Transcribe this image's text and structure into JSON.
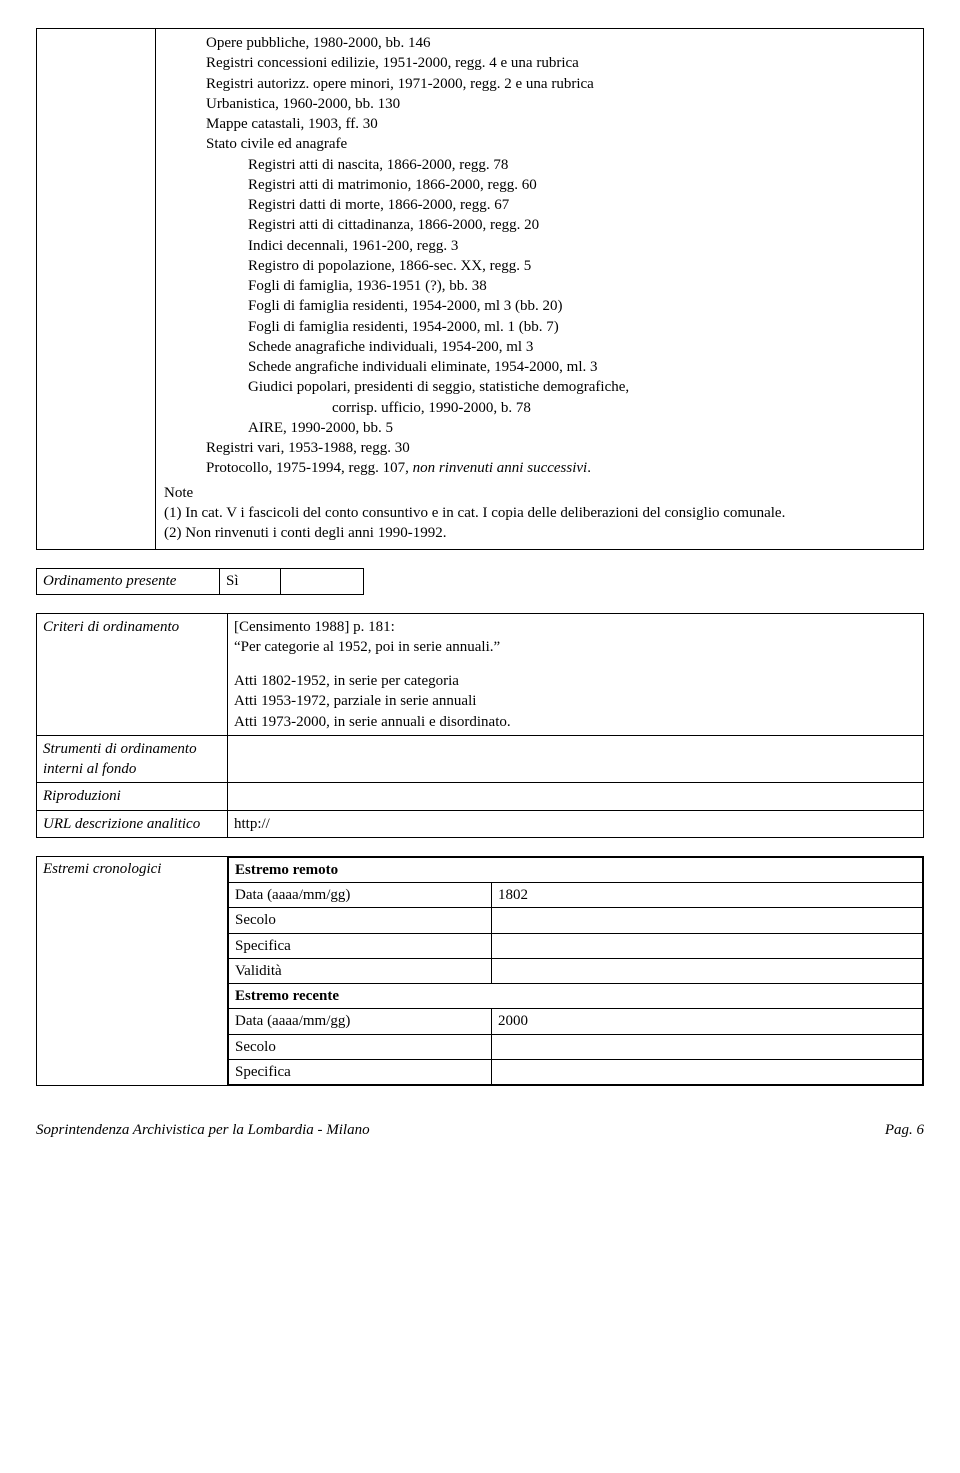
{
  "main": {
    "lines": [
      {
        "cls": "indent1",
        "text": "Opere pubbliche, 1980-2000, bb. 146"
      },
      {
        "cls": "indent1",
        "text": "Registri concessioni edilizie, 1951-2000, regg. 4 e una rubrica"
      },
      {
        "cls": "indent1",
        "text": "Registri autorizz. opere minori, 1971-2000, regg. 2 e una rubrica"
      },
      {
        "cls": "indent1",
        "text": "Urbanistica, 1960-2000, bb. 130"
      },
      {
        "cls": "indent1",
        "text": "Mappe catastali, 1903, ff. 30"
      },
      {
        "cls": "indent1",
        "text": "Stato civile ed anagrafe"
      },
      {
        "cls": "indent2",
        "text": "Registri atti di nascita, 1866-2000, regg. 78"
      },
      {
        "cls": "indent2",
        "text": "Registri atti di matrimonio, 1866-2000, regg. 60"
      },
      {
        "cls": "indent2",
        "text": "Registri datti di morte, 1866-2000, regg. 67"
      },
      {
        "cls": "indent2",
        "text": "Registri atti di cittadinanza, 1866-2000, regg. 20"
      },
      {
        "cls": "indent2",
        "text": "Indici decennali, 1961-200, regg. 3"
      },
      {
        "cls": "indent2",
        "text": "Registro di popolazione, 1866-sec. XX, regg. 5"
      },
      {
        "cls": "indent2",
        "text": "Fogli di famiglia, 1936-1951 (?), bb. 38"
      },
      {
        "cls": "indent2",
        "text": "Fogli di famiglia residenti, 1954-2000, ml 3 (bb. 20)"
      },
      {
        "cls": "indent2",
        "text": "Fogli di famiglia residenti, 1954-2000, ml. 1 (bb. 7)"
      },
      {
        "cls": "indent2",
        "text": "Schede anagrafiche individuali, 1954-200, ml 3"
      },
      {
        "cls": "indent2",
        "text": "Schede angrafiche individuali eliminate, 1954-2000, ml. 3"
      },
      {
        "cls": "indent2",
        "text": "Giudici popolari, presidenti di seggio, statistiche demografiche,"
      },
      {
        "cls": "indent3",
        "text": "corrisp. ufficio, 1990-2000, b. 78"
      },
      {
        "cls": "indent2",
        "text": "AIRE, 1990-2000, bb. 5"
      },
      {
        "cls": "indent1",
        "text": "Registri vari, 1953-1988, regg. 30"
      }
    ],
    "protocollo_prefix": "Protocollo, 1975-1994, regg. 107, ",
    "protocollo_italic": "non rinvenuti anni successivi",
    "note_label": "Note",
    "note1": "(1) In cat. V i fascicoli del conto consuntivo e in cat. I copia delle deliberazioni del consiglio comunale.",
    "note2": "(2) Non rinvenuti i conti degli anni 1990-1992."
  },
  "ordinamento": {
    "label": "Ordinamento presente",
    "value": "Sì"
  },
  "criteria": {
    "rows": [
      {
        "label": "Criteri di ordinamento",
        "content_type": "criteria"
      },
      {
        "label": "Strumenti di ordinamento interni al fondo",
        "content_type": "empty"
      },
      {
        "label": "Riproduzioni",
        "content_type": "empty"
      },
      {
        "label": "URL descrizione analitico",
        "content_type": "url"
      }
    ],
    "censimento": "[Censimento 1988] p. 181:",
    "quote": "“Per categorie al 1952, poi in serie annuali.”",
    "atti1": "Atti 1802-1952, in serie per categoria",
    "atti2": "Atti 1953-1972, parziale in serie annuali",
    "atti3": "Atti 1973-2000, in serie annuali e disordinato.",
    "url": "http://"
  },
  "estremi": {
    "label": "Estremi cronologici",
    "rows": [
      {
        "bold": true,
        "key": "Estremo remoto",
        "val": null,
        "single": true
      },
      {
        "bold": false,
        "key": "Data (aaaa/mm/gg)",
        "val": "1802"
      },
      {
        "bold": false,
        "key": "Secolo",
        "val": ""
      },
      {
        "bold": false,
        "key": "Specifica",
        "val": ""
      },
      {
        "bold": false,
        "key": "Validità",
        "val": ""
      },
      {
        "bold": true,
        "key": "Estremo recente",
        "val": null,
        "single": true
      },
      {
        "bold": false,
        "key": "Data (aaaa/mm/gg)",
        "val": "2000"
      },
      {
        "bold": false,
        "key": "Secolo",
        "val": ""
      },
      {
        "bold": false,
        "key": "Specifica",
        "val": ""
      }
    ]
  },
  "footer": {
    "left": "Soprintendenza Archivistica per la Lombardia - Milano",
    "right": "Pag. 6"
  }
}
